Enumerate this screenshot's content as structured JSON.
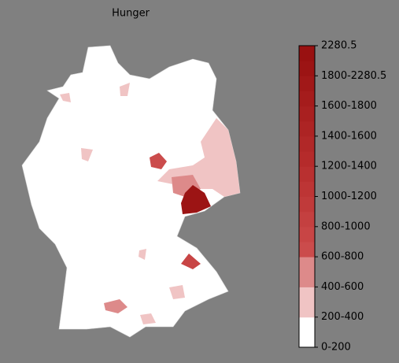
{
  "title": "Hunger",
  "colorbar": {
    "labels": [
      "0-200",
      "200-400",
      "400-600",
      "600-800",
      "800-1000",
      "1000-1200",
      "1200-1400",
      "1400-1600",
      "1600-1800",
      "1800-2280.5",
      "2280.5"
    ],
    "colors": [
      "#ffffff",
      "#ffffff",
      "#f0c4c4",
      "#f0c4c4",
      "#dd8a8a",
      "#dd8a8a",
      "#cb4c4c",
      "#c84545",
      "#c44040",
      "#c03a3a",
      "#bd3535",
      "#b93030",
      "#b52b2b",
      "#b12828",
      "#ad2424",
      "#a92020",
      "#a51c1c",
      "#a11818",
      "#9c1414",
      "#991111"
    ]
  }
}
